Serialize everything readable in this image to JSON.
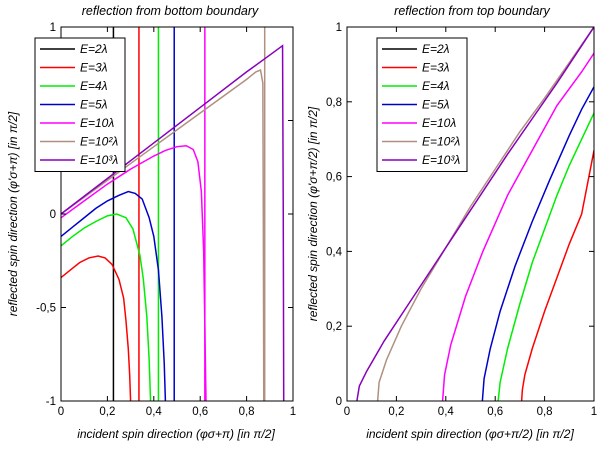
{
  "chart_data": [
    {
      "type": "line",
      "title": "reflection from bottom boundary",
      "xlabel": "incident spin direction (φσ+π) [in π/2]",
      "ylabel": "reflected spin direction (φ'σ+π) [in π/2]",
      "xlim": [
        0,
        1
      ],
      "ylim": [
        -1,
        1
      ],
      "xticks": [
        "0",
        "0,2",
        "0,4",
        "0,6",
        "0,8",
        "1"
      ],
      "yticks": [
        "-1",
        "-0,5",
        "0",
        "0,5",
        "1"
      ],
      "legend": "top-left",
      "series": [
        {
          "name": "E=2λ",
          "color": "#000000",
          "segments": [
            [
              [
                0.226,
                -1
              ],
              [
                0.226,
                1
              ]
            ]
          ]
        },
        {
          "name": "E=3λ",
          "color": "#ff0000",
          "segments": [
            [
              [
                0,
                -0.34
              ],
              [
                0.04,
                -0.3
              ],
              [
                0.08,
                -0.26
              ],
              [
                0.12,
                -0.235
              ],
              [
                0.16,
                -0.225
              ],
              [
                0.19,
                -0.235
              ],
              [
                0.22,
                -0.27
              ],
              [
                0.25,
                -0.35
              ],
              [
                0.27,
                -0.45
              ],
              [
                0.28,
                -0.57
              ],
              [
                0.29,
                -0.72
              ],
              [
                0.296,
                -0.86
              ],
              [
                0.3,
                -1
              ]
            ],
            [
              [
                0.336,
                -1
              ],
              [
                0.336,
                1
              ]
            ]
          ]
        },
        {
          "name": "E=4λ",
          "color": "#00ee00",
          "segments": [
            [
              [
                0,
                -0.17
              ],
              [
                0.05,
                -0.12
              ],
              [
                0.1,
                -0.075
              ],
              [
                0.15,
                -0.04
              ],
              [
                0.2,
                -0.01
              ],
              [
                0.24,
                0.0
              ],
              [
                0.28,
                -0.02
              ],
              [
                0.31,
                -0.08
              ],
              [
                0.34,
                -0.22
              ],
              [
                0.355,
                -0.35
              ],
              [
                0.37,
                -0.55
              ],
              [
                0.38,
                -0.78
              ],
              [
                0.386,
                -1
              ]
            ],
            [
              [
                0.42,
                -1
              ],
              [
                0.42,
                1
              ]
            ]
          ]
        },
        {
          "name": "E=5λ",
          "color": "#0000cc",
          "segments": [
            [
              [
                0,
                -0.12
              ],
              [
                0.05,
                -0.07
              ],
              [
                0.1,
                -0.02
              ],
              [
                0.15,
                0.03
              ],
              [
                0.2,
                0.07
              ],
              [
                0.25,
                0.1
              ],
              [
                0.29,
                0.12
              ],
              [
                0.32,
                0.11
              ],
              [
                0.35,
                0.08
              ],
              [
                0.38,
                -0.02
              ],
              [
                0.4,
                -0.12
              ],
              [
                0.42,
                -0.3
              ],
              [
                0.435,
                -0.55
              ],
              [
                0.445,
                -0.8
              ],
              [
                0.45,
                -1
              ]
            ],
            [
              [
                0.488,
                -1
              ],
              [
                0.488,
                1
              ]
            ]
          ]
        },
        {
          "name": "E=10λ",
          "color": "#ff00ff",
          "segments": [
            [
              [
                0,
                -0.02
              ],
              [
                0.1,
                0.07
              ],
              [
                0.2,
                0.16
              ],
              [
                0.3,
                0.24
              ],
              [
                0.4,
                0.31
              ],
              [
                0.45,
                0.34
              ],
              [
                0.5,
                0.36
              ],
              [
                0.54,
                0.365
              ],
              [
                0.57,
                0.345
              ],
              [
                0.59,
                0.28
              ],
              [
                0.605,
                0.12
              ],
              [
                0.615,
                -0.2
              ],
              [
                0.62,
                -0.6
              ],
              [
                0.625,
                -1
              ]
            ],
            [
              [
                0.62,
                -1
              ],
              [
                0.62,
                1
              ]
            ]
          ]
        },
        {
          "name": "E=10²λ",
          "color": "#b09080",
          "segments": [
            [
              [
                0,
                0.0
              ],
              [
                0.2,
                0.18
              ],
              [
                0.4,
                0.36
              ],
              [
                0.6,
                0.54
              ],
              [
                0.8,
                0.72
              ],
              [
                0.84,
                0.76
              ],
              [
                0.86,
                0.77
              ],
              [
                0.87,
                0.7
              ],
              [
                0.872,
                0.0
              ],
              [
                0.874,
                -1
              ]
            ],
            [
              [
                0.878,
                -1
              ],
              [
                0.878,
                1
              ]
            ]
          ]
        },
        {
          "name": "E=10³λ",
          "color": "#8800bb",
          "segments": [
            [
              [
                0,
                0.0
              ],
              [
                0.2,
                0.19
              ],
              [
                0.4,
                0.38
              ],
              [
                0.6,
                0.57
              ],
              [
                0.8,
                0.76
              ],
              [
                0.9,
                0.85
              ],
              [
                0.955,
                0.9
              ],
              [
                0.958,
                0.0
              ],
              [
                0.96,
                -1
              ]
            ]
          ]
        }
      ]
    },
    {
      "type": "line",
      "title": "reflection from top boundary",
      "xlabel": "incident spin direction (φσ+π/2) [in π/2]",
      "ylabel": "reflected spin direction (φ'σ+π/2) [in π/2]",
      "xlim": [
        0,
        1
      ],
      "ylim": [
        0,
        1
      ],
      "xticks": [
        "0",
        "0,2",
        "0,4",
        "0,6",
        "0,8",
        "1"
      ],
      "yticks": [
        "0",
        "0,2",
        "0,4",
        "0,6",
        "0,8",
        "1"
      ],
      "legend": "top-left",
      "series": [
        {
          "name": "E=2λ",
          "color": "#000000",
          "segments": []
        },
        {
          "name": "E=3λ",
          "color": "#ff0000",
          "segments": [
            [
              [
                0.707,
                0
              ],
              [
                0.71,
                0.03
              ],
              [
                0.72,
                0.07
              ],
              [
                0.75,
                0.14
              ],
              [
                0.8,
                0.24
              ],
              [
                0.85,
                0.33
              ],
              [
                0.9,
                0.42
              ],
              [
                0.95,
                0.5
              ],
              [
                1.0,
                0.67
              ]
            ]
          ]
        },
        {
          "name": "E=4λ",
          "color": "#00ee00",
          "segments": [
            [
              [
                0.612,
                0
              ],
              [
                0.62,
                0.05
              ],
              [
                0.65,
                0.14
              ],
              [
                0.7,
                0.26
              ],
              [
                0.75,
                0.37
              ],
              [
                0.8,
                0.46
              ],
              [
                0.85,
                0.55
              ],
              [
                0.9,
                0.63
              ],
              [
                0.95,
                0.7
              ],
              [
                1.0,
                0.77
              ]
            ]
          ]
        },
        {
          "name": "E=5λ",
          "color": "#0000cc",
          "segments": [
            [
              [
                0.548,
                0
              ],
              [
                0.555,
                0.06
              ],
              [
                0.58,
                0.14
              ],
              [
                0.62,
                0.24
              ],
              [
                0.68,
                0.36
              ],
              [
                0.75,
                0.48
              ],
              [
                0.82,
                0.59
              ],
              [
                0.9,
                0.71
              ],
              [
                0.95,
                0.78
              ],
              [
                1.0,
                0.84
              ]
            ]
          ]
        },
        {
          "name": "E=10λ",
          "color": "#ff00ff",
          "segments": [
            [
              [
                0.387,
                0
              ],
              [
                0.395,
                0.07
              ],
              [
                0.42,
                0.15
              ],
              [
                0.48,
                0.28
              ],
              [
                0.55,
                0.4
              ],
              [
                0.65,
                0.55
              ],
              [
                0.75,
                0.67
              ],
              [
                0.85,
                0.79
              ],
              [
                0.95,
                0.88
              ],
              [
                1.0,
                0.93
              ]
            ]
          ]
        },
        {
          "name": "E=10²λ",
          "color": "#b09080",
          "segments": [
            [
              [
                0.124,
                0
              ],
              [
                0.13,
                0.05
              ],
              [
                0.16,
                0.11
              ],
              [
                0.22,
                0.2
              ],
              [
                0.3,
                0.3
              ],
              [
                0.4,
                0.41
              ],
              [
                0.5,
                0.52
              ],
              [
                0.6,
                0.62
              ],
              [
                0.7,
                0.72
              ],
              [
                0.8,
                0.81
              ],
              [
                0.9,
                0.905
              ],
              [
                1.0,
                1.0
              ]
            ]
          ]
        },
        {
          "name": "E=10³λ",
          "color": "#8800bb",
          "segments": [
            [
              [
                0.04,
                0
              ],
              [
                0.05,
                0.04
              ],
              [
                0.08,
                0.08
              ],
              [
                0.15,
                0.16
              ],
              [
                0.25,
                0.26
              ],
              [
                0.35,
                0.36
              ],
              [
                0.45,
                0.46
              ],
              [
                0.55,
                0.56
              ],
              [
                0.65,
                0.66
              ],
              [
                0.75,
                0.755
              ],
              [
                0.85,
                0.85
              ],
              [
                0.95,
                0.95
              ],
              [
                1.0,
                1.0
              ]
            ]
          ]
        }
      ]
    }
  ]
}
